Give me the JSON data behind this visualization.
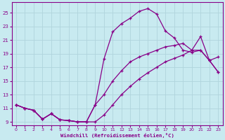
{
  "background_color": "#c8eaf0",
  "grid_color": "#b0d4dc",
  "line_color": "#880088",
  "xlabel": "Windchill (Refroidissement éolien,°C)",
  "yticks": [
    9,
    11,
    13,
    15,
    17,
    19,
    21,
    23,
    25
  ],
  "xticks": [
    0,
    1,
    2,
    3,
    4,
    5,
    6,
    7,
    8,
    9,
    10,
    11,
    12,
    13,
    14,
    15,
    16,
    17,
    18,
    19,
    20,
    21,
    22,
    23
  ],
  "xlim": [
    -0.5,
    23.5
  ],
  "ylim": [
    8.5,
    26.5
  ],
  "line1_x": [
    0,
    1,
    2,
    3,
    4,
    5,
    6,
    7,
    8,
    9,
    10,
    11,
    12,
    13,
    14,
    15,
    16,
    17,
    18,
    19,
    20,
    21,
    22,
    23
  ],
  "line1_y": [
    11.5,
    11.0,
    10.7,
    9.4,
    10.2,
    9.3,
    9.2,
    9.0,
    9.0,
    9.0,
    10.0,
    11.5,
    13.0,
    14.2,
    15.3,
    16.2,
    17.0,
    17.8,
    18.3,
    18.8,
    19.5,
    19.5,
    18.0,
    16.3
  ],
  "line2_x": [
    0,
    1,
    2,
    3,
    4,
    5,
    6,
    7,
    8,
    9,
    10,
    11,
    12,
    13,
    14,
    15,
    16,
    17,
    18,
    19,
    20,
    21,
    22,
    23
  ],
  "line2_y": [
    11.5,
    11.0,
    10.7,
    9.4,
    10.2,
    9.3,
    9.2,
    9.0,
    9.0,
    11.5,
    18.2,
    22.2,
    23.4,
    24.2,
    25.2,
    25.6,
    24.8,
    22.3,
    21.3,
    19.5,
    19.2,
    19.5,
    18.0,
    16.3
  ],
  "line3_x": [
    0,
    1,
    2,
    3,
    4,
    5,
    6,
    7,
    8,
    9,
    10,
    11,
    12,
    13,
    14,
    15,
    16,
    17,
    18,
    19,
    20,
    21,
    22,
    23
  ],
  "line3_y": [
    11.5,
    11.0,
    10.7,
    9.4,
    10.2,
    9.3,
    9.2,
    9.0,
    9.0,
    11.5,
    13.0,
    15.0,
    16.5,
    17.8,
    18.5,
    19.0,
    19.5,
    20.0,
    20.2,
    20.5,
    19.5,
    21.5,
    18.0,
    18.5
  ]
}
